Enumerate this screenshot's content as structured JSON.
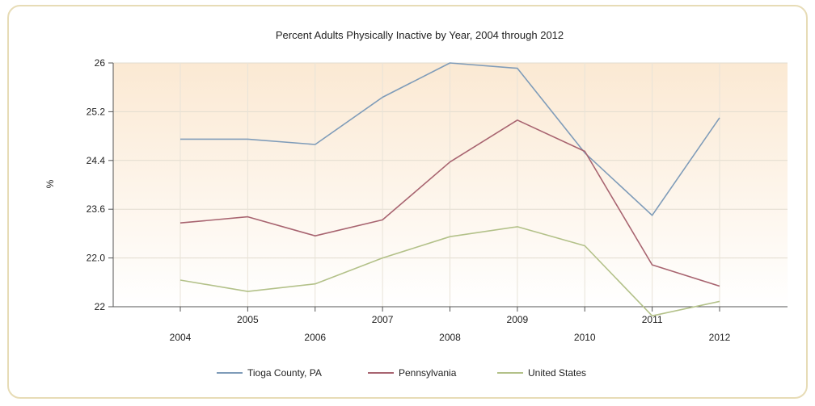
{
  "chart_data": {
    "type": "line",
    "title": "Percent Adults Physically Inactive by Year, 2004 through 2012",
    "ylabel": "%",
    "xlabel": "",
    "x": [
      2004,
      2005,
      2006,
      2007,
      2008,
      2009,
      2010,
      2011,
      2012
    ],
    "x_tick_labels": [
      "2004",
      "2005",
      "2006",
      "2007",
      "2008",
      "2009",
      "2010",
      "2011",
      "2012"
    ],
    "y_tick_labels": [
      "26",
      "25.2",
      "24.4",
      "23.6",
      "22.0",
      "22"
    ],
    "ylim": [
      22.8,
      26.0
    ],
    "grid": true,
    "legend_position": "bottom",
    "series": [
      {
        "name": "Tioga County, PA",
        "color": "#7f9cb9",
        "values": [
          25.0,
          25.0,
          24.93,
          25.55,
          26.0,
          25.93,
          24.82,
          24.0,
          25.28
        ]
      },
      {
        "name": "Pennsylvania",
        "color": "#a86470",
        "values": [
          23.9,
          23.98,
          23.73,
          23.94,
          24.7,
          25.25,
          24.84,
          23.35,
          23.07
        ]
      },
      {
        "name": "United States",
        "color": "#b3c189",
        "values": [
          23.15,
          23.0,
          23.1,
          23.44,
          23.72,
          23.85,
          23.6,
          22.68,
          22.87
        ]
      }
    ]
  }
}
